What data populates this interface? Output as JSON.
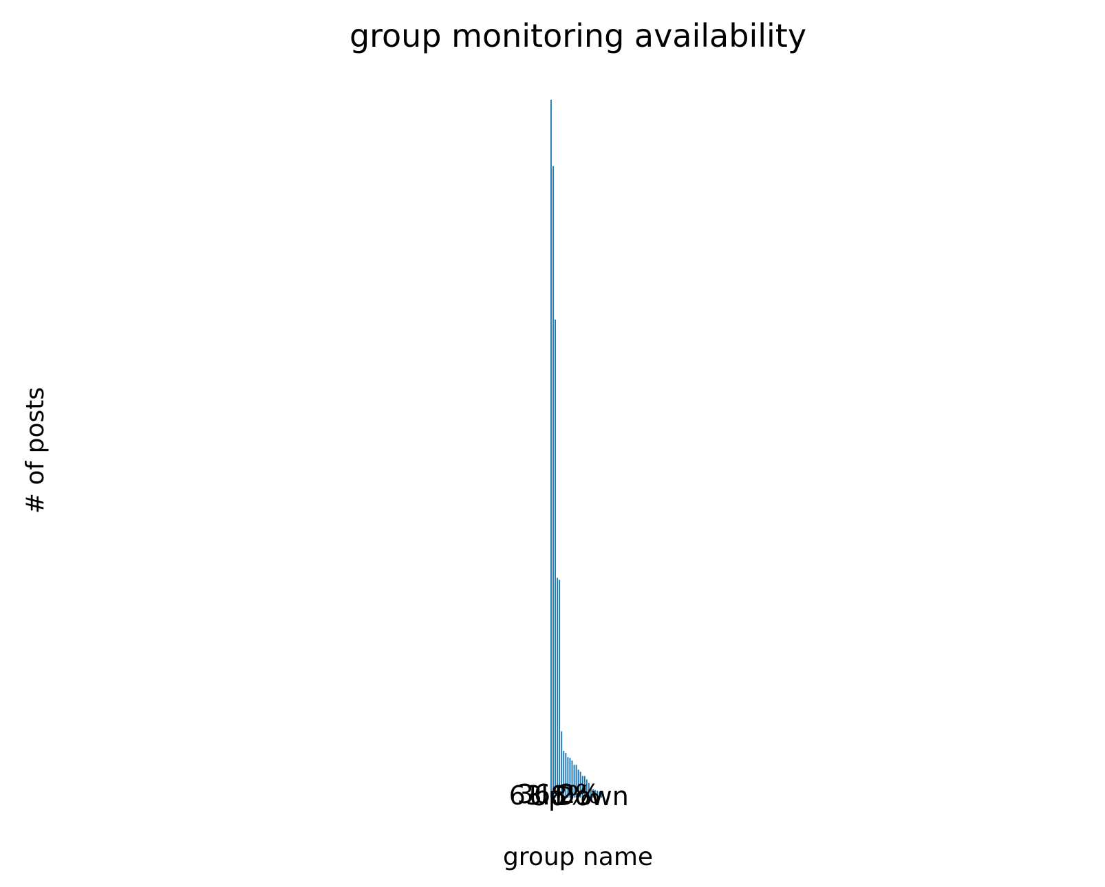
{
  "chart_data": {
    "type": "bar",
    "title": "group monitoring availability",
    "xlabel": "group name",
    "ylabel": "# of posts",
    "grid": false,
    "values": [
      1000,
      905,
      685,
      315,
      312,
      95,
      67,
      64,
      58,
      57,
      53,
      47,
      47,
      40,
      37,
      31,
      31,
      26,
      21,
      14,
      12,
      11,
      10,
      9,
      7
    ],
    "ylim": [
      0,
      1000
    ],
    "inset": {
      "type": "pie",
      "labels": [
        "Up",
        "Down"
      ],
      "autopct": [
        "63.8%",
        "36.2%"
      ]
    }
  }
}
